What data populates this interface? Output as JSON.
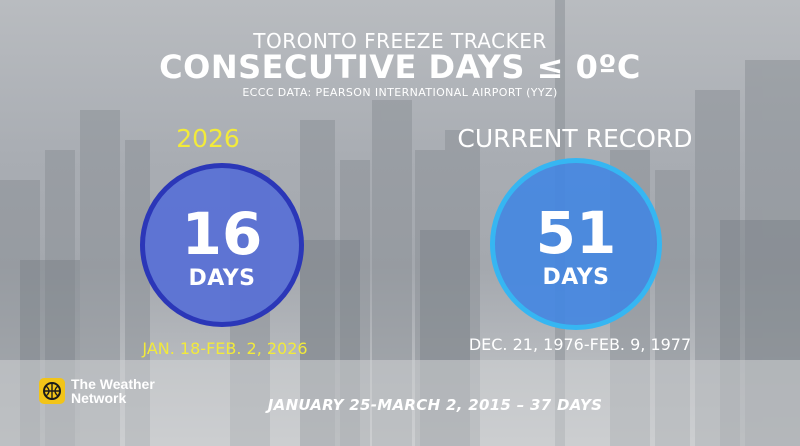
{
  "header": {
    "kicker": "TORONTO FREEZE TRACKER",
    "title": "CONSECUTIVE DAYS ≤ 0ºC",
    "source": "ECCC DATA: PEARSON INTERNATIONAL AIRPORT (YYZ)"
  },
  "current": {
    "label": "2026",
    "value": "16",
    "unit": "DAYS",
    "range": "JAN. 18-FEB. 2, 2026"
  },
  "record": {
    "label": "CURRENT RECORD",
    "value": "51",
    "unit": "DAYS",
    "range": "DEC. 21, 1976-FEB. 9, 1977"
  },
  "footer": {
    "note": "JANUARY 25-MARCH 2, 2015 – 37 DAYS"
  },
  "logo": {
    "line1": "The Weather",
    "line2": "Network"
  },
  "colors": {
    "yellow": "#f2ea3b",
    "circle_2026_fill": "#5870d6",
    "circle_2026_ring": "#2b37b8",
    "circle_record_fill": "#4286e2",
    "circle_record_ring": "#36b6f2"
  }
}
